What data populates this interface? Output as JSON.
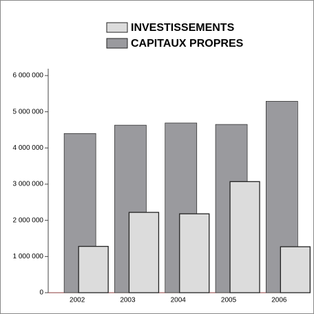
{
  "chart_data": {
    "type": "bar",
    "categories": [
      "2002",
      "2003",
      "2004",
      "2005",
      "2006"
    ],
    "series": [
      {
        "name": "INVESTISSEMENTS",
        "color": "#dcdcdc",
        "values": [
          1280000,
          2220000,
          2180000,
          3070000,
          1270000
        ]
      },
      {
        "name": "CAPITAUX PROPRES",
        "color": "#9a9a9e",
        "values": [
          4400000,
          4630000,
          4690000,
          4650000,
          5290000
        ]
      }
    ],
    "ylim": [
      0,
      6000000
    ],
    "yticks": [
      0,
      {
        "value": 1000000,
        "label": "1 000 000"
      },
      {
        "value": 2000000,
        "label": "2 000 000"
      },
      {
        "value": 3000000,
        "label": "3 000 000"
      },
      {
        "value": 4000000,
        "label": "4 000 000"
      },
      {
        "value": 5000000,
        "label": "5 000 000"
      },
      {
        "value": 6000000,
        "label": "6 000 000"
      }
    ],
    "legend": "top"
  }
}
